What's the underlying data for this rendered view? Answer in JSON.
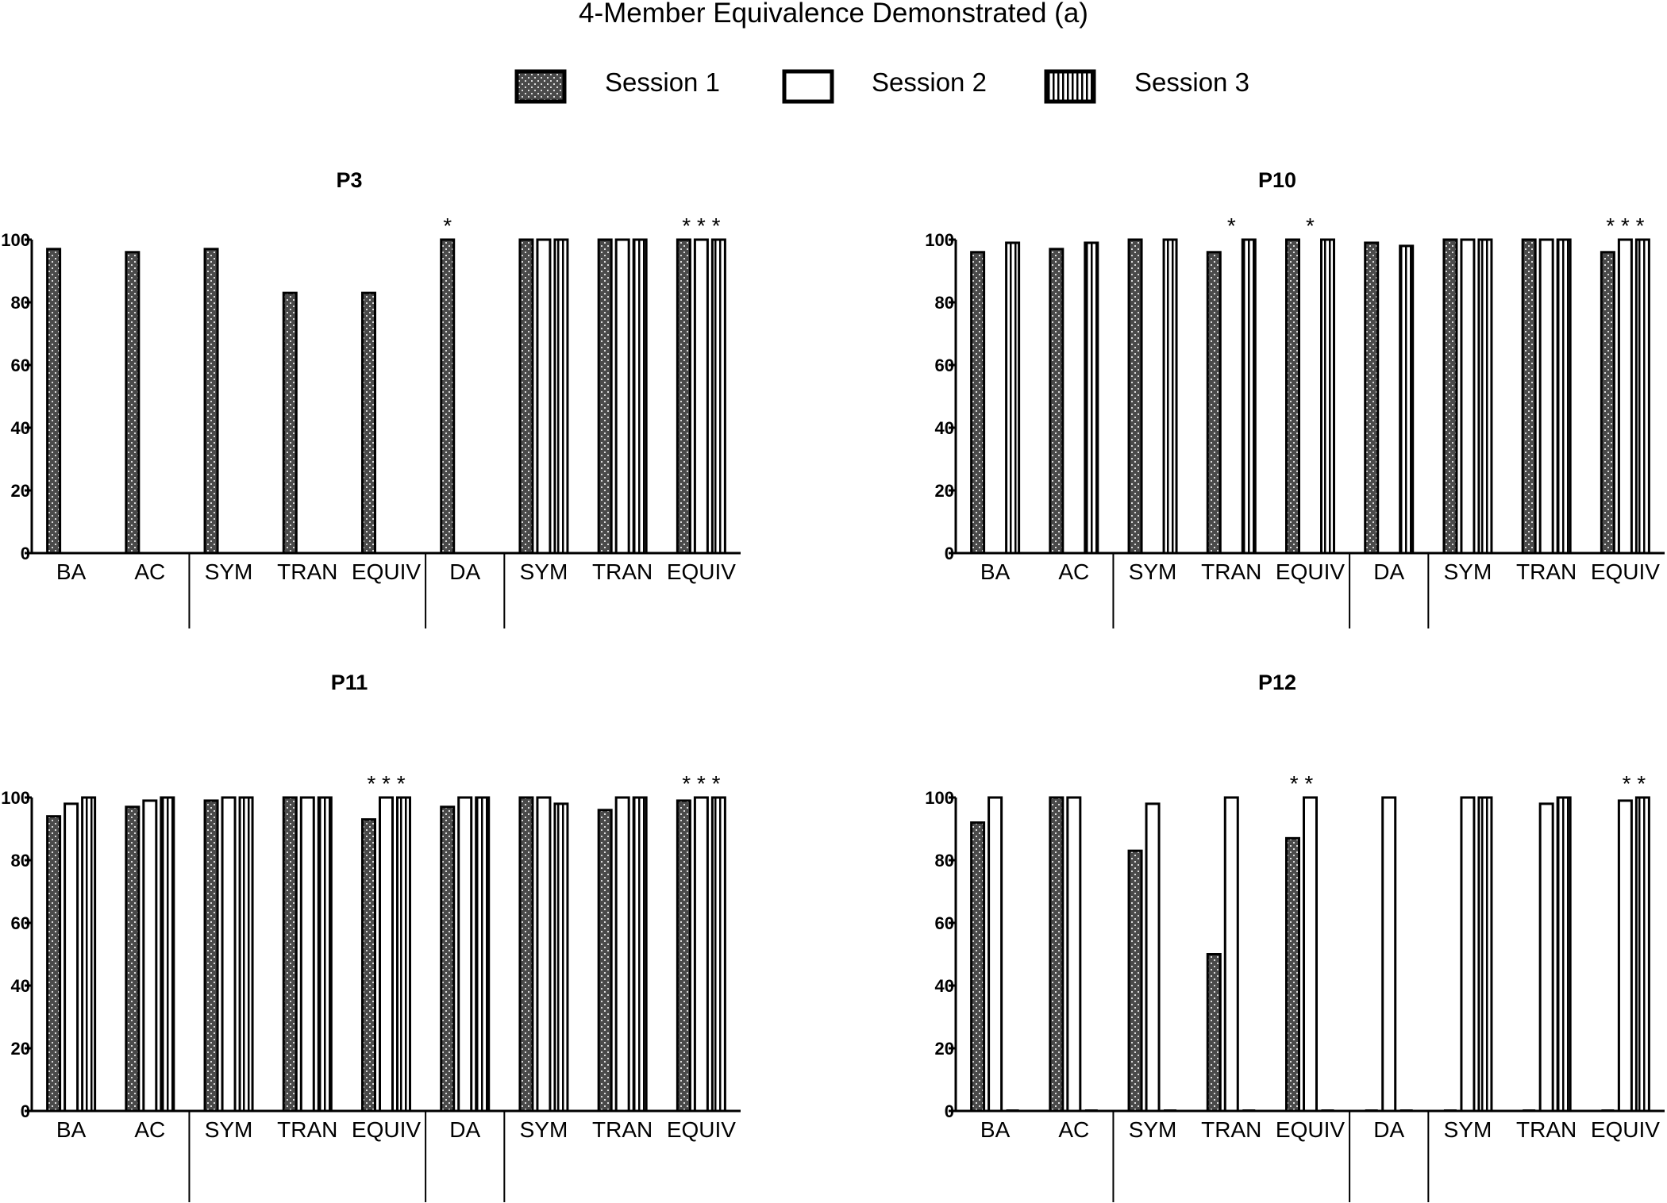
{
  "chart_data": {
    "type": "bar",
    "title": "4-Member Equivalence Demonstrated (a)",
    "legend": {
      "placement": "top-center",
      "items": [
        {
          "name": "Session 1",
          "pattern": "dotted-dark"
        },
        {
          "name": "Session 2",
          "pattern": "white"
        },
        {
          "name": "Session 3",
          "pattern": "vertical-stripes"
        }
      ]
    },
    "series": [
      "Session 1",
      "Session 2",
      "Session 3"
    ],
    "ylim": [
      0,
      100
    ],
    "yticks": [
      "0",
      "20",
      "40",
      "60",
      "80",
      "100"
    ],
    "grid": false,
    "panels": [
      {
        "title": "P3",
        "separators_after": [
          1,
          4,
          5
        ],
        "groups": [
          {
            "label": "BA",
            "values": [
              97,
              null,
              null
            ],
            "marker": ""
          },
          {
            "label": "AC",
            "values": [
              96,
              null,
              null
            ],
            "marker": ""
          },
          {
            "label": "SYM",
            "values": [
              97,
              null,
              null
            ],
            "marker": ""
          },
          {
            "label": "TRAN",
            "values": [
              83,
              null,
              null
            ],
            "marker": ""
          },
          {
            "label": "EQUIV",
            "values": [
              83,
              null,
              null
            ],
            "marker": ""
          },
          {
            "label": "DA",
            "values": [
              100,
              null,
              null
            ],
            "marker": "*"
          },
          {
            "label": "SYM",
            "values": [
              100,
              100,
              100
            ],
            "marker": ""
          },
          {
            "label": "TRAN",
            "values": [
              100,
              100,
              100
            ],
            "marker": ""
          },
          {
            "label": "EQUIV",
            "values": [
              100,
              100,
              100
            ],
            "marker": "* * *"
          }
        ]
      },
      {
        "title": "P10",
        "separators_after": [
          1,
          4,
          5
        ],
        "groups": [
          {
            "label": "BA",
            "values": [
              96,
              null,
              99
            ],
            "marker": ""
          },
          {
            "label": "AC",
            "values": [
              97,
              null,
              99
            ],
            "marker": ""
          },
          {
            "label": "SYM",
            "values": [
              100,
              null,
              100
            ],
            "marker": ""
          },
          {
            "label": "TRAN",
            "values": [
              96,
              null,
              100
            ],
            "marker": "*"
          },
          {
            "label": "EQUIV",
            "values": [
              100,
              null,
              100
            ],
            "marker": "*"
          },
          {
            "label": "DA",
            "values": [
              99,
              null,
              98
            ],
            "marker": ""
          },
          {
            "label": "SYM",
            "values": [
              100,
              100,
              100
            ],
            "marker": ""
          },
          {
            "label": "TRAN",
            "values": [
              100,
              100,
              100
            ],
            "marker": ""
          },
          {
            "label": "EQUIV",
            "values": [
              96,
              100,
              100
            ],
            "marker": "* * *"
          }
        ]
      },
      {
        "title": "P11",
        "separators_after": [
          1,
          4,
          5
        ],
        "groups": [
          {
            "label": "BA",
            "values": [
              94,
              98,
              100
            ],
            "marker": ""
          },
          {
            "label": "AC",
            "values": [
              97,
              99,
              100
            ],
            "marker": ""
          },
          {
            "label": "SYM",
            "values": [
              99,
              100,
              100
            ],
            "marker": ""
          },
          {
            "label": "TRAN",
            "values": [
              100,
              100,
              100
            ],
            "marker": ""
          },
          {
            "label": "EQUIV",
            "values": [
              93,
              100,
              100
            ],
            "marker": "* * *"
          },
          {
            "label": "DA",
            "values": [
              97,
              100,
              100
            ],
            "marker": ""
          },
          {
            "label": "SYM",
            "values": [
              100,
              100,
              98
            ],
            "marker": ""
          },
          {
            "label": "TRAN",
            "values": [
              96,
              100,
              100
            ],
            "marker": ""
          },
          {
            "label": "EQUIV",
            "values": [
              99,
              100,
              100
            ],
            "marker": "* * *"
          }
        ]
      },
      {
        "title": "P12",
        "separators_after": [
          1,
          4,
          5
        ],
        "groups": [
          {
            "label": "BA",
            "values": [
              92,
              100,
              0
            ],
            "marker": ""
          },
          {
            "label": "AC",
            "values": [
              100,
              100,
              0
            ],
            "marker": ""
          },
          {
            "label": "SYM",
            "values": [
              83,
              98,
              0
            ],
            "marker": ""
          },
          {
            "label": "TRAN",
            "values": [
              50,
              100,
              0
            ],
            "marker": ""
          },
          {
            "label": "EQUIV",
            "values": [
              87,
              100,
              0
            ],
            "marker": "* *"
          },
          {
            "label": "DA",
            "values": [
              0,
              100,
              0
            ],
            "marker": ""
          },
          {
            "label": "SYM",
            "values": [
              0,
              100,
              100
            ],
            "marker": ""
          },
          {
            "label": "TRAN",
            "values": [
              0,
              98,
              100
            ],
            "marker": ""
          },
          {
            "label": "EQUIV",
            "values": [
              0,
              99,
              100
            ],
            "marker": "* *"
          }
        ]
      }
    ]
  }
}
